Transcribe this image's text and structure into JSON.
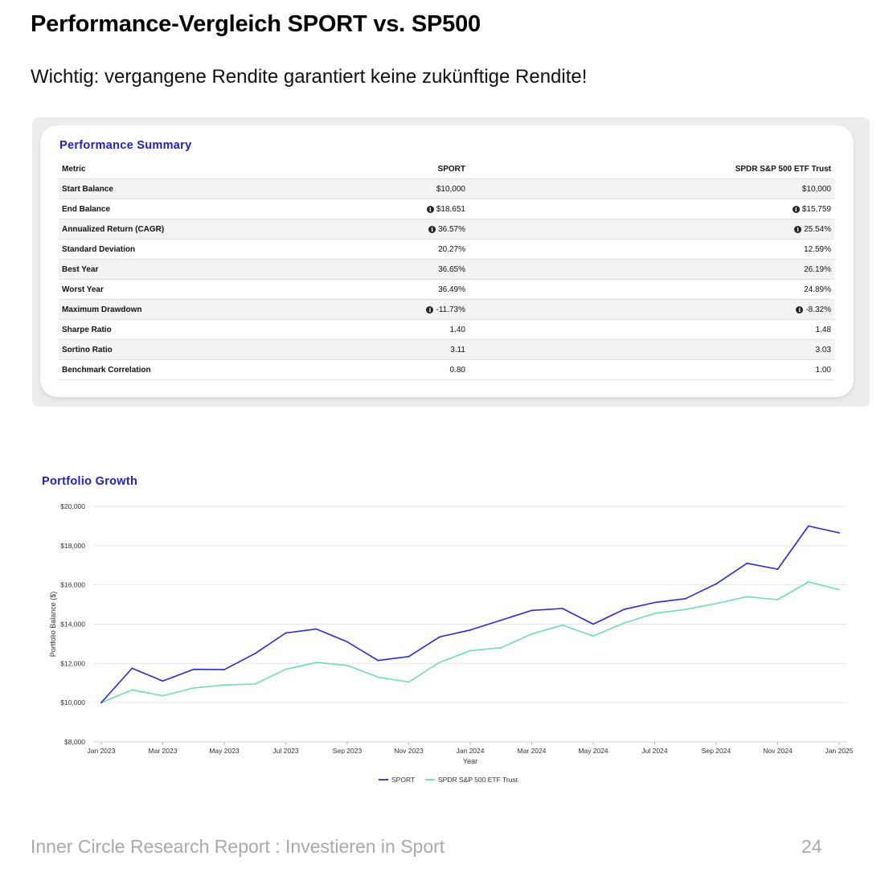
{
  "page": {
    "title": "Performance-Vergleich SPORT vs. SP500",
    "subtitle": "Wichtig: vergangene Rendite garantiert keine zukünftige Rendite!"
  },
  "summary": {
    "title": "Performance Summary",
    "columns": [
      "Metric",
      "SPORT",
      "SPDR S&P 500 ETF Trust"
    ],
    "rows": [
      {
        "metric": "Start Balance",
        "sport": "$10,000",
        "spy": "$10,000",
        "sport_info": false,
        "spy_info": false
      },
      {
        "metric": "End Balance",
        "sport": "$18,651",
        "spy": "$15,759",
        "sport_info": true,
        "spy_info": true
      },
      {
        "metric": "Annualized Return (CAGR)",
        "sport": "36.57%",
        "spy": "25.54%",
        "sport_info": true,
        "spy_info": true
      },
      {
        "metric": "Standard Deviation",
        "sport": "20.27%",
        "spy": "12.59%",
        "sport_info": false,
        "spy_info": false
      },
      {
        "metric": "Best Year",
        "sport": "36.65%",
        "spy": "26.19%",
        "sport_info": false,
        "spy_info": false
      },
      {
        "metric": "Worst Year",
        "sport": "36.49%",
        "spy": "24.89%",
        "sport_info": false,
        "spy_info": false
      },
      {
        "metric": "Maximum Drawdown",
        "sport": "-11.73%",
        "spy": "-8.32%",
        "sport_info": true,
        "spy_info": true
      },
      {
        "metric": "Sharpe Ratio",
        "sport": "1.40",
        "spy": "1.48",
        "sport_info": false,
        "spy_info": false
      },
      {
        "metric": "Sortino Ratio",
        "sport": "3.11",
        "spy": "3.03",
        "sport_info": false,
        "spy_info": false
      },
      {
        "metric": "Benchmark Correlation",
        "sport": "0.80",
        "spy": "1.00",
        "sport_info": false,
        "spy_info": false
      }
    ],
    "info_icon": "info-circle-icon"
  },
  "growth": {
    "title": "Portfolio Growth"
  },
  "chart_data": {
    "type": "line",
    "title": "Portfolio Growth",
    "xlabel": "Year",
    "ylabel": "Portfolio Balance ($)",
    "ylim": [
      8000,
      20000
    ],
    "yticks": [
      8000,
      10000,
      12000,
      14000,
      16000,
      18000,
      20000
    ],
    "ytick_labels": [
      "$8,000",
      "$10,000",
      "$12,000",
      "$14,000",
      "$16,000",
      "$18,000",
      "$20,000"
    ],
    "xtick_labels": [
      "Jan 2023",
      "Mar 2023",
      "May 2023",
      "Jul 2023",
      "Sep 2023",
      "Nov 2023",
      "Jan 2024",
      "Mar 2024",
      "May 2024",
      "Jul 2024",
      "Sep 2024",
      "Nov 2024",
      "Jan 2025"
    ],
    "xtick_indices": [
      0,
      2,
      4,
      6,
      8,
      10,
      12,
      14,
      16,
      18,
      20,
      22,
      24
    ],
    "x": [
      "Jan 2023",
      "Feb 2023",
      "Mar 2023",
      "Apr 2023",
      "May 2023",
      "Jun 2023",
      "Jul 2023",
      "Aug 2023",
      "Sep 2023",
      "Oct 2023",
      "Nov 2023",
      "Dec 2023",
      "Jan 2024",
      "Feb 2024",
      "Mar 2024",
      "Apr 2024",
      "May 2024",
      "Jun 2024",
      "Jul 2024",
      "Aug 2024",
      "Sep 2024",
      "Oct 2024",
      "Nov 2024",
      "Dec 2024",
      "Jan 2025"
    ],
    "grid": true,
    "legend_position": "bottom-center",
    "series": [
      {
        "name": "SPORT",
        "color": "#2a2ad4",
        "values": [
          10000,
          11750,
          11100,
          11700,
          11680,
          12500,
          13550,
          13750,
          13100,
          12150,
          12350,
          13350,
          13700,
          14200,
          14700,
          14800,
          14000,
          14750,
          15100,
          15300,
          16050,
          17100,
          16800,
          19000,
          18651
        ]
      },
      {
        "name": "SPDR S&P 500 ETF Trust",
        "color": "#6fdcb4",
        "values": [
          10000,
          10650,
          10350,
          10750,
          10900,
          10950,
          11700,
          12050,
          11900,
          11300,
          11050,
          12050,
          12650,
          12800,
          13500,
          13950,
          13400,
          14050,
          14550,
          14750,
          15050,
          15400,
          15250,
          16150,
          15759
        ]
      }
    ]
  },
  "footer": {
    "report": "Inner Circle Research Report : Investieren in Sport",
    "page_number": "24"
  }
}
